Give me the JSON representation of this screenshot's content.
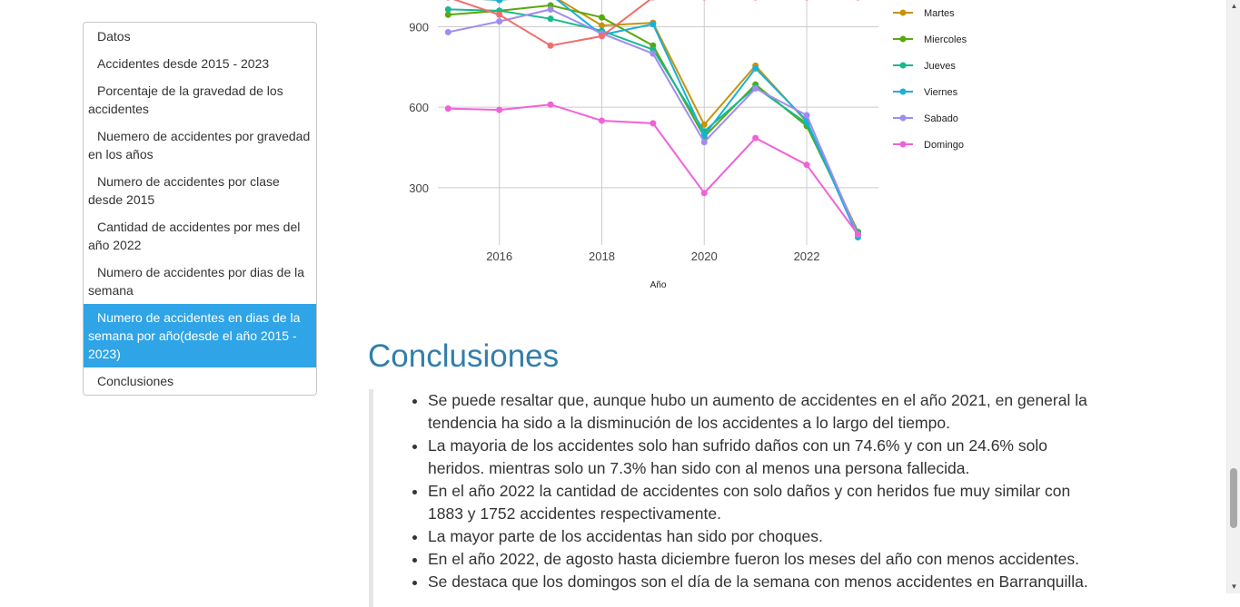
{
  "toc": {
    "items": [
      {
        "label": "Datos",
        "active": false
      },
      {
        "label": "Accidentes desde 2015 - 2023",
        "active": false
      },
      {
        "label": "Porcentaje de la gravedad de los accidentes",
        "active": false
      },
      {
        "label": "Nuemero de accidentes por gravedad en los años",
        "active": false
      },
      {
        "label": "Numero de accidentes por clase desde 2015",
        "active": false
      },
      {
        "label": "Cantidad de accidentes por mes del año 2022",
        "active": false
      },
      {
        "label": "Numero de accidentes por dias de la semana",
        "active": false
      },
      {
        "label": "Numero de accidentes en dias de la semana por año(desde el año 2015 - 2023)",
        "active": true
      },
      {
        "label": "Conclusiones",
        "active": false
      }
    ]
  },
  "chart_data": {
    "type": "line",
    "xlabel": "Año",
    "ylabel": "",
    "x": [
      2015,
      2016,
      2017,
      2018,
      2019,
      2020,
      2021,
      2022,
      2023
    ],
    "x_ticks": [
      2016,
      2018,
      2020,
      2022
    ],
    "y_ticks": [
      300,
      600,
      900
    ],
    "ylim": [
      120,
      1000
    ],
    "xlim": [
      2014.8,
      2023.4
    ],
    "grid": true,
    "legend_position": "right",
    "series": [
      {
        "name": "Martes",
        "color": "#c8930a",
        "values": [
          1010,
          1000,
          1020,
          905,
          915,
          535,
          755,
          545,
          135
        ]
      },
      {
        "name": "Miercoles",
        "color": "#59a80f",
        "values": [
          945,
          960,
          980,
          935,
          830,
          490,
          685,
          530,
          135
        ]
      },
      {
        "name": "Jueves",
        "color": "#17b98e",
        "values": [
          965,
          960,
          930,
          885,
          815,
          510,
          675,
          540,
          130
        ]
      },
      {
        "name": "Viernes",
        "color": "#1ab0d8",
        "values": [
          1010,
          1000,
          1020,
          870,
          910,
          495,
          745,
          550,
          115
        ]
      },
      {
        "name": "Sabado",
        "color": "#a08cf0",
        "values": [
          880,
          920,
          965,
          875,
          800,
          470,
          670,
          570,
          125
        ]
      },
      {
        "name": "Domingo",
        "color": "#f062d8",
        "values": [
          595,
          590,
          610,
          550,
          540,
          280,
          485,
          385,
          125
        ]
      },
      {
        "name": "",
        "color": "#ef6f6c",
        "values": [
          1010,
          945,
          830,
          865,
          1010,
          1010,
          1010,
          1010,
          1010
        ]
      }
    ]
  },
  "conclusions": {
    "title": "Conclusiones",
    "items": [
      "Se puede resaltar que, aunque hubo un aumento de accidentes en el año 2021, en general la tendencia ha sido a la disminución de los accidentes a lo largo del tiempo.",
      "La mayoria de los accidentes solo han sufrido daños con un 74.6% y con un 24.6% solo heridos. mientras solo un 7.3% han sido con al menos una persona fallecida.",
      "En el año 2022 la cantidad de accidentes con solo daños y con heridos fue muy similar con 1883 y 1752 accidentes respectivamente.",
      "La mayor parte de los accidentas han sido por choques.",
      "En el año 2022, de agosto hasta diciembre fueron los meses del año con menos accidentes.",
      "Se destaca que los domingos son el día de la semana con menos accidentes en Barranquilla."
    ]
  }
}
